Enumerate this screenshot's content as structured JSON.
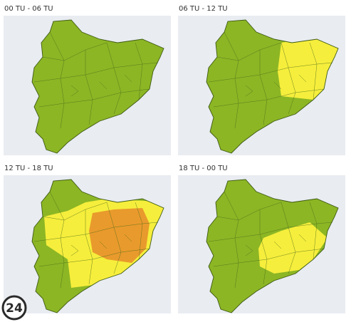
{
  "panels": [
    {
      "title": "00 TU - 06 TU"
    },
    {
      "title": "06 TU - 12 TU"
    },
    {
      "title": "12 TU - 18 TU"
    },
    {
      "title": "18 TU - 00 TU"
    }
  ],
  "logo": "24"
}
